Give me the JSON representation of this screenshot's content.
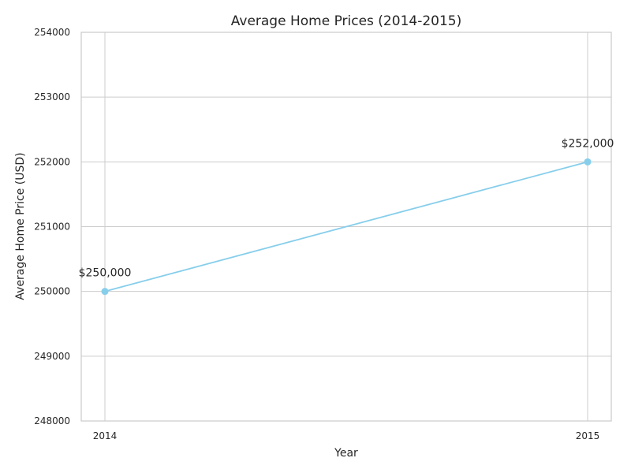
{
  "chart_data": {
    "type": "line",
    "title": "Average Home Prices (2014-2015)",
    "xlabel": "Year",
    "ylabel": "Average Home Price (USD)",
    "x": [
      "2014",
      "2015"
    ],
    "series": [
      {
        "values": [
          250000,
          252000
        ],
        "data_labels": [
          "$250,000",
          "$252,000"
        ],
        "color": "#87CEEB"
      }
    ],
    "ylim": [
      248000,
      254000
    ],
    "yticks": [
      248000,
      249000,
      250000,
      251000,
      252000,
      253000,
      254000
    ],
    "grid": true,
    "legend": "none"
  }
}
